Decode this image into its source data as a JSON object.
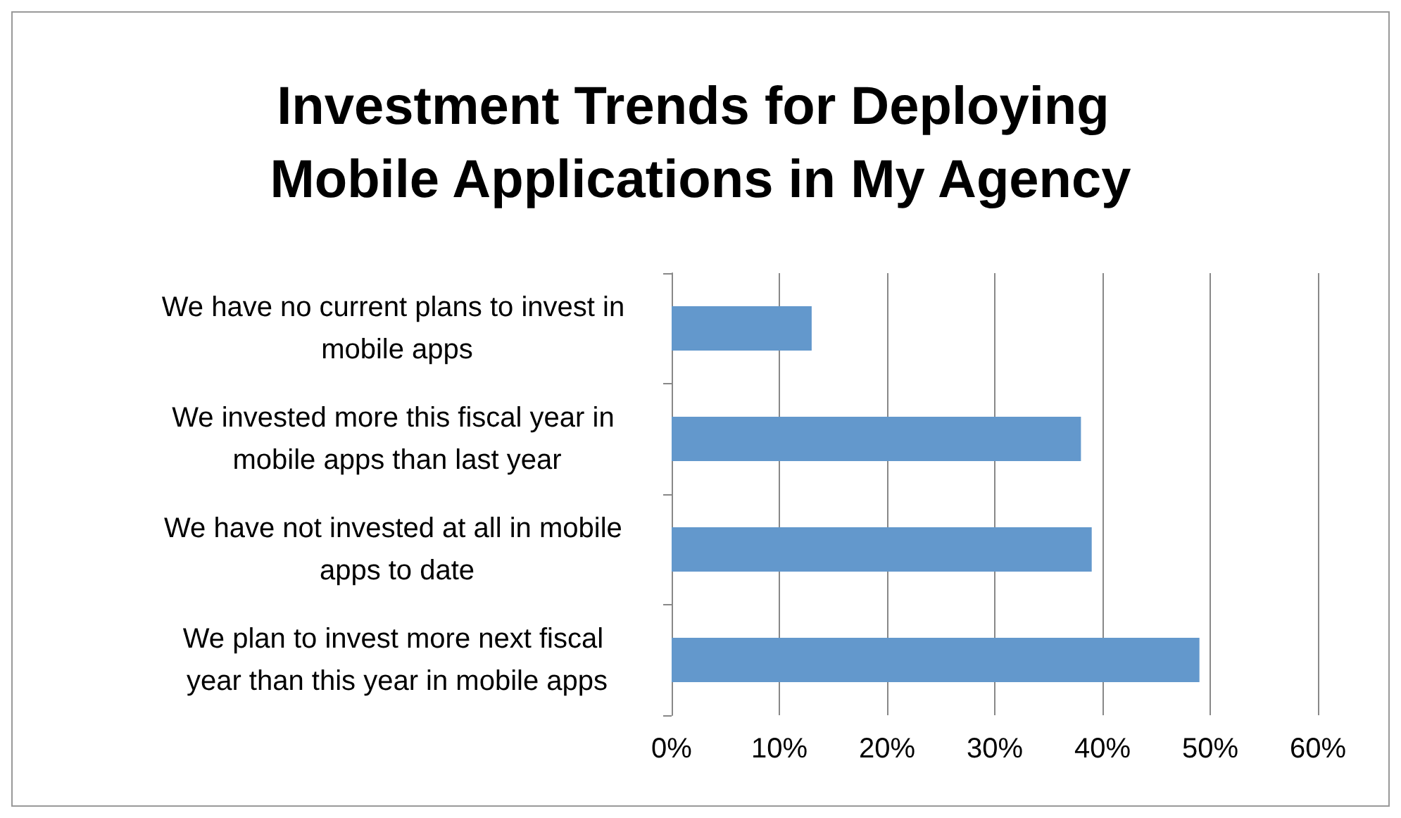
{
  "chart_data": {
    "type": "bar",
    "orientation": "horizontal",
    "title": "Investment Trends for Deploying Mobile Applications in My Agency",
    "categories": [
      "We have no current plans to invest in mobile apps",
      "We invested more this fiscal year in mobile apps than last year",
      "We have not invested at all in mobile apps to date",
      "We plan to invest more next fiscal year than this year in mobile apps"
    ],
    "values": [
      13,
      38,
      39,
      49
    ],
    "color": "#6398cc",
    "xlim": [
      0,
      60
    ],
    "xticks": [
      {
        "value": 0,
        "label": "0%"
      },
      {
        "value": 10,
        "label": "10%"
      },
      {
        "value": 20,
        "label": "20%"
      },
      {
        "value": 30,
        "label": "30%"
      },
      {
        "value": 40,
        "label": "40%"
      },
      {
        "value": 50,
        "label": "50%"
      },
      {
        "value": 60,
        "label": "60%"
      }
    ],
    "grid": "x"
  }
}
